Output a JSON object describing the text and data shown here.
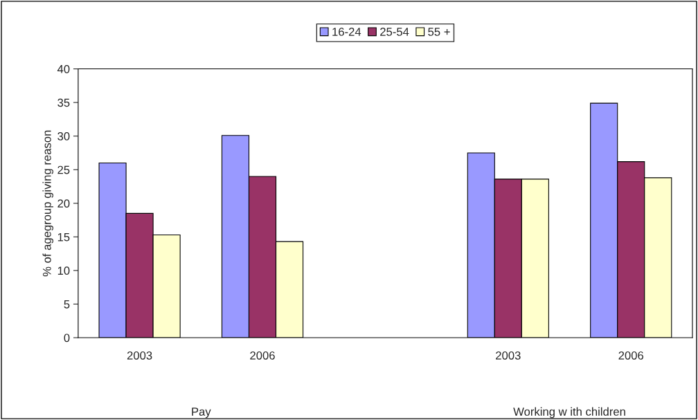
{
  "chart_data": {
    "type": "bar",
    "ylabel": "% of agegroup giving reason",
    "categories": [
      "2003",
      "2006",
      null,
      "2003",
      "2006"
    ],
    "series": [
      {
        "name": "16-24",
        "color": "#9999ff",
        "values": [
          26.0,
          30.1,
          null,
          27.5,
          34.9
        ]
      },
      {
        "name": "25-54",
        "color": "#993366",
        "values": [
          18.5,
          24.0,
          null,
          23.6,
          26.2
        ]
      },
      {
        "name": "55 +",
        "color": "#ffffcc",
        "values": [
          15.3,
          14.3,
          null,
          23.6,
          23.8
        ]
      }
    ],
    "annotations": [
      "Pay",
      "Working w ith children"
    ],
    "ylim": [
      0,
      40
    ],
    "yticks": [
      0,
      5,
      10,
      15,
      20,
      25,
      30,
      35,
      40
    ],
    "grid": false,
    "legend": "top"
  }
}
